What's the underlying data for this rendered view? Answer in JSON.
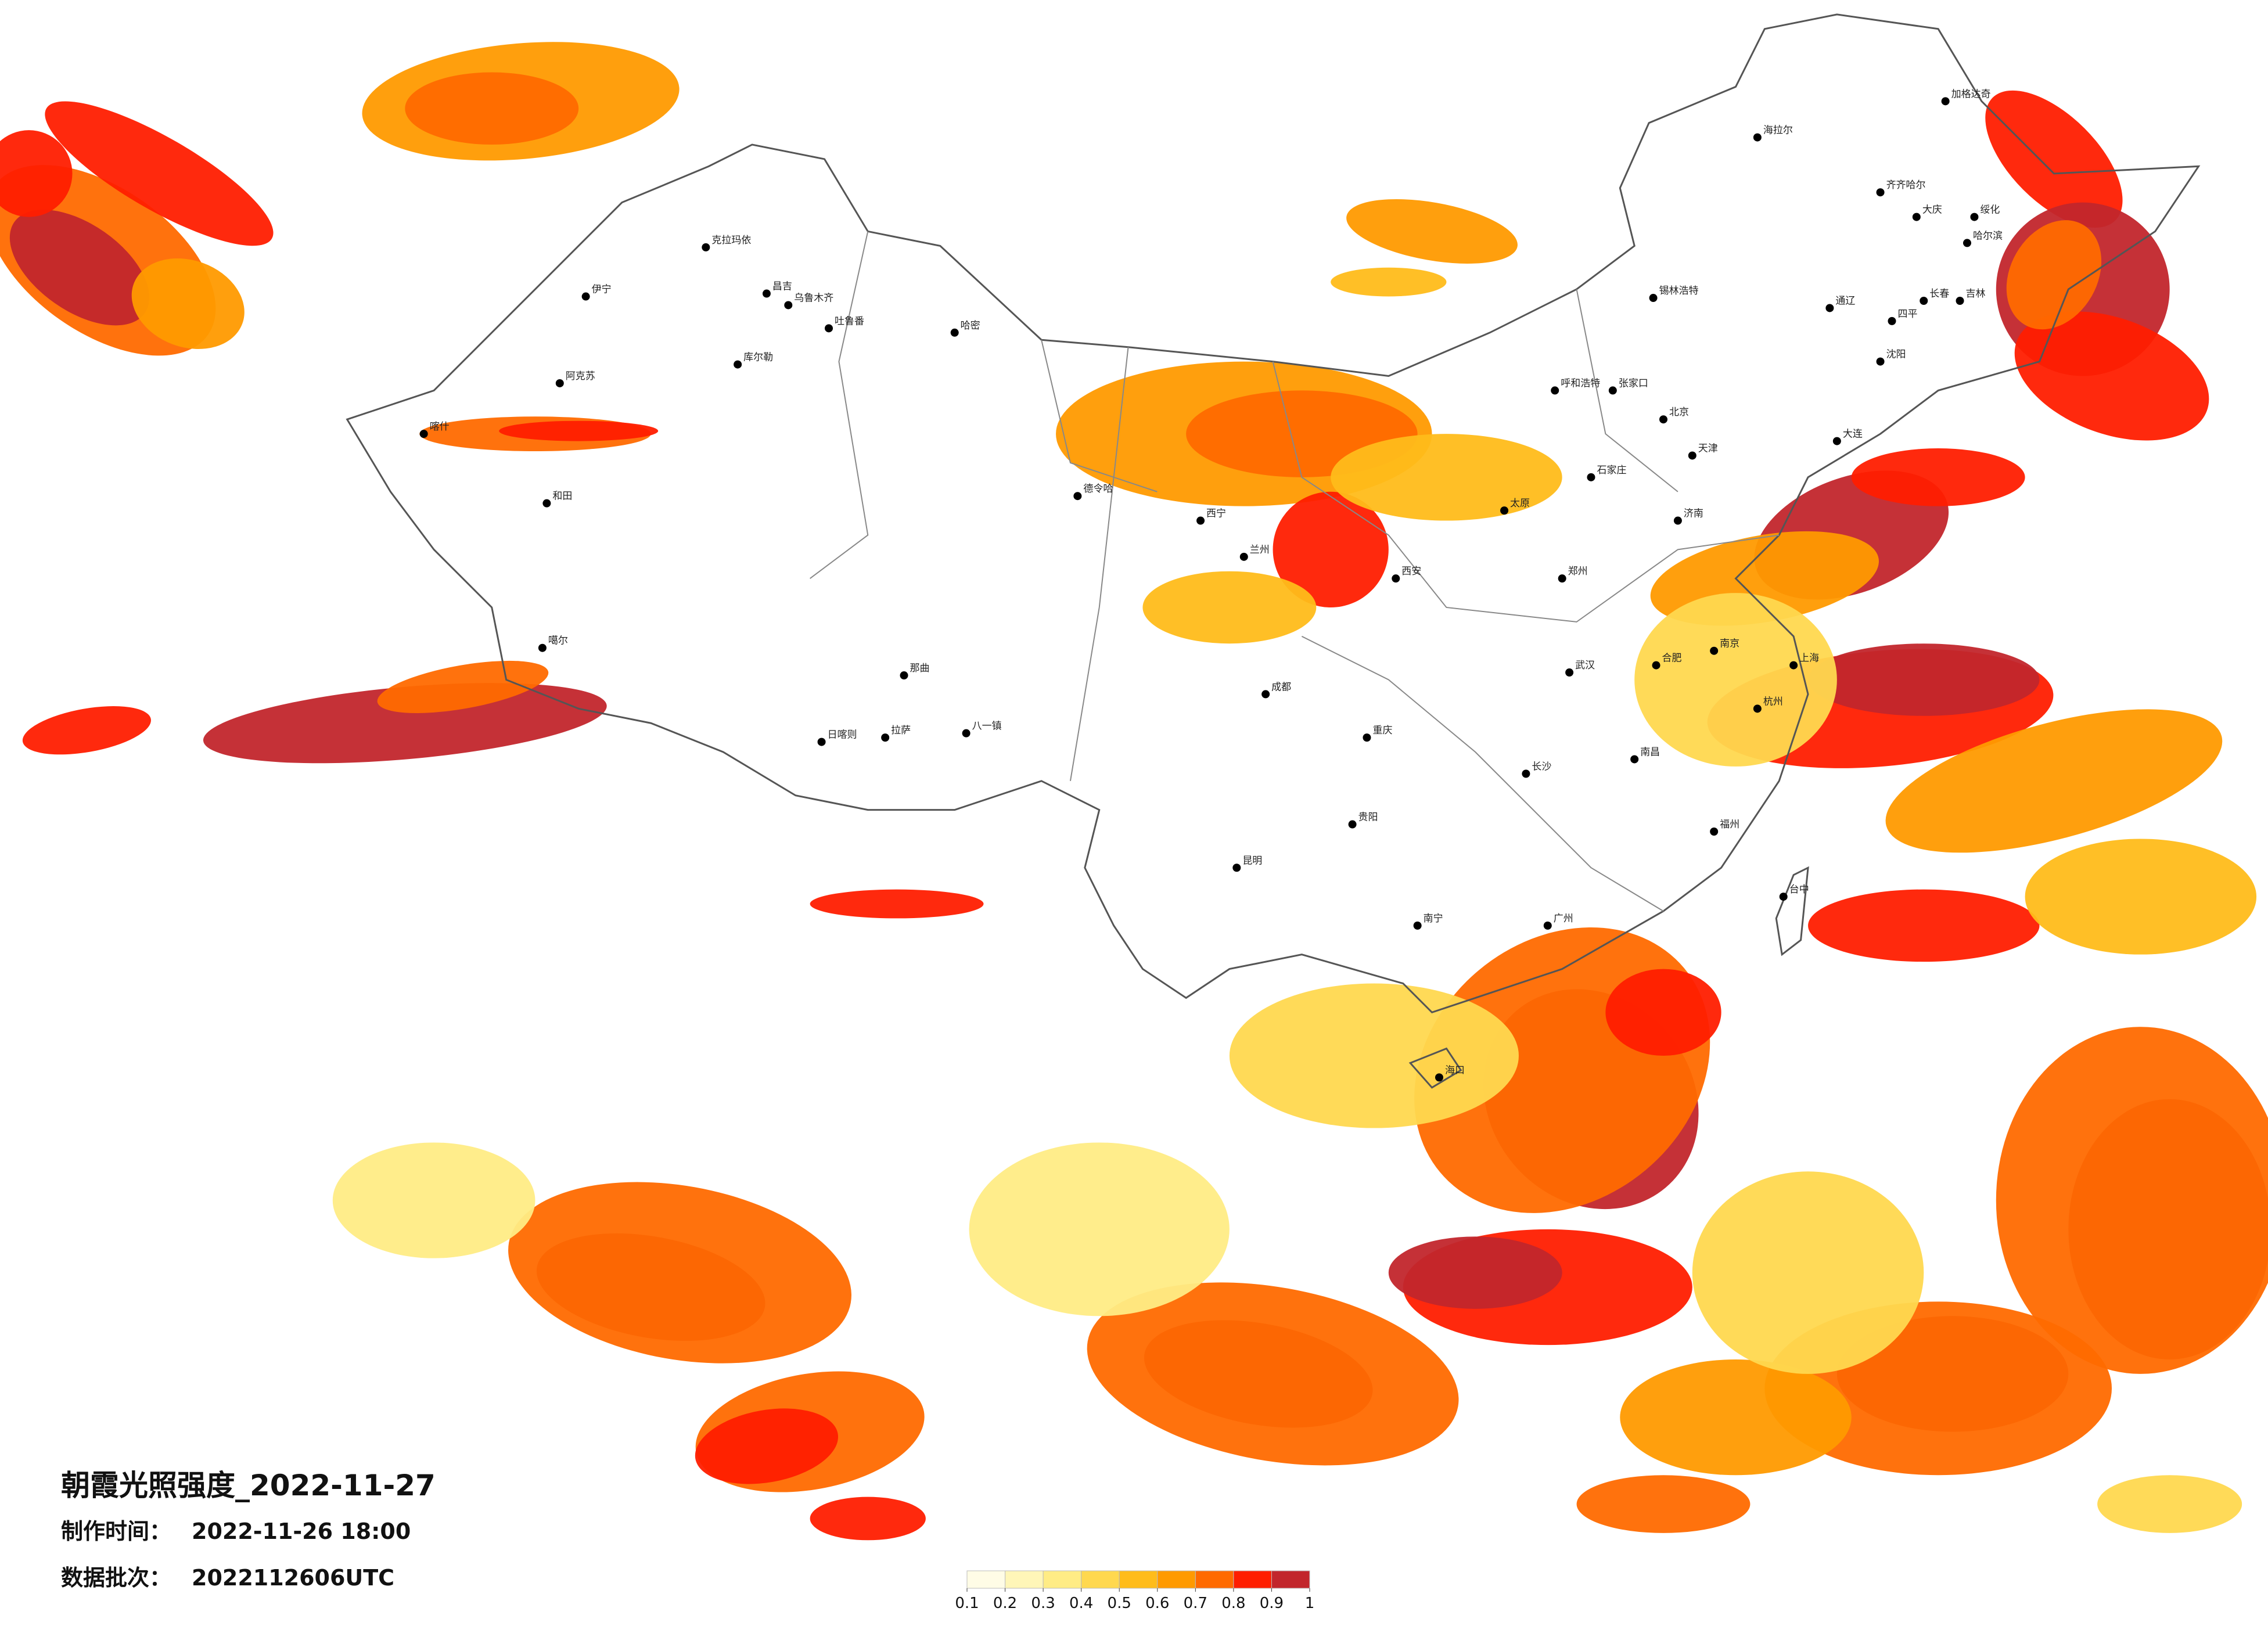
{
  "title": "朝霞光照强度_2022-11-27",
  "production_time": {
    "label": "制作时间：",
    "value": "2022-11-26 18:00"
  },
  "batch": {
    "label": "数据批次：",
    "value": "2022112606UTC"
  },
  "legend": {
    "ticks": [
      0.1,
      0.2,
      0.3,
      0.4,
      0.5,
      0.6,
      0.7,
      0.8,
      0.9,
      1
    ],
    "colors": [
      "#fffce6",
      "#fff6b8",
      "#ffec85",
      "#ffd84f",
      "#ffbc1a",
      "#ff9a00",
      "#ff6a00",
      "#ff1e00",
      "#c2262c"
    ]
  },
  "cities": [
    "加格达奇",
    "海拉尔",
    "齐齐哈尔",
    "大庆",
    "绥化",
    "哈尔滨",
    "长春",
    "吉林",
    "四平",
    "通辽",
    "锡林浩特",
    "沈阳",
    "大连",
    "克拉玛依",
    "伊宁",
    "昌吉",
    "乌鲁木齐",
    "吐鲁番",
    "哈密",
    "库尔勒",
    "阿克苏",
    "喀什",
    "和田",
    "噶尔",
    "日喀则",
    "拉萨",
    "那曲",
    "八一镇",
    "德令哈",
    "呼和浩特",
    "张家口",
    "北京",
    "天津",
    "石家庄",
    "太原",
    "济南",
    "郑州",
    "西安",
    "兰州",
    "西宁",
    "成都",
    "重庆",
    "贵阳",
    "昆明",
    "南宁",
    "广州",
    "长沙",
    "武汉",
    "南昌",
    "杭州",
    "上海",
    "南京",
    "合肥",
    "福州",
    "台中",
    "海口"
  ]
}
